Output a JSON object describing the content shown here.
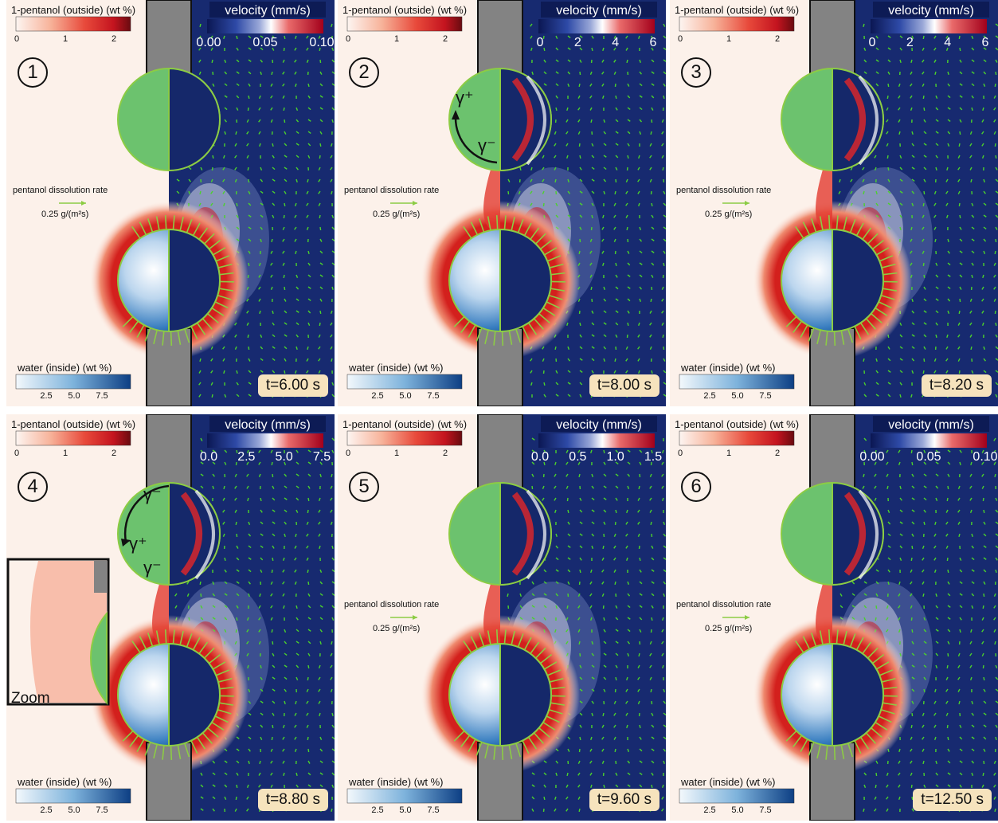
{
  "panels": [
    {
      "id": "1",
      "time": "t=6.00 s",
      "vel_ticks": [
        "0.00",
        "0.05",
        "0.10"
      ],
      "rate": true,
      "arrow_mode": "none",
      "zoom": false
    },
    {
      "id": "2",
      "time": "t=8.00 s",
      "vel_ticks": [
        "0",
        "2",
        "4",
        "6"
      ],
      "rate": true,
      "arrow_mode": "gamma",
      "zoom": false
    },
    {
      "id": "3",
      "time": "t=8.20 s",
      "vel_ticks": [
        "0",
        "2",
        "4",
        "6"
      ],
      "rate": true,
      "arrow_mode": "none",
      "zoom": false
    },
    {
      "id": "4",
      "time": "t=8.80 s",
      "vel_ticks": [
        "0.0",
        "2.5",
        "5.0",
        "7.5"
      ],
      "rate": false,
      "arrow_mode": "gamma3",
      "zoom": true
    },
    {
      "id": "5",
      "time": "t=9.60 s",
      "vel_ticks": [
        "0.0",
        "0.5",
        "1.0",
        "1.5"
      ],
      "rate": true,
      "arrow_mode": "none",
      "zoom": false
    },
    {
      "id": "6",
      "time": "t=12.50 s",
      "vel_ticks": [
        "0.00",
        "0.05",
        "0.10"
      ],
      "rate": true,
      "arrow_mode": "none",
      "zoom": false
    }
  ],
  "labels": {
    "pentanol_outside": "1-pentanol (outside) (wt %)",
    "pentanol_ticks": [
      "0",
      "1",
      "2"
    ],
    "velocity": "velocity (mm/s)",
    "water_inside": "water (inside) (wt %)",
    "water_ticks": [
      "2.5",
      "5.0",
      "7.5"
    ],
    "rate_title": "pentanol dissolution rate",
    "rate_value": "0.25 g/(m²s)",
    "gamma_plus": "γ⁺",
    "gamma_minus": "γ⁻",
    "zoom": "Zoom"
  },
  "colors": {
    "pentanol_bg": "#fcf1ea",
    "velocity_bg": "#172a70",
    "droplet": "#6cc26e",
    "droplet_edge": "#8ccc44",
    "wall": "#838383",
    "vector": "#4bd22b",
    "badge_time": "#f6e3bd"
  }
}
